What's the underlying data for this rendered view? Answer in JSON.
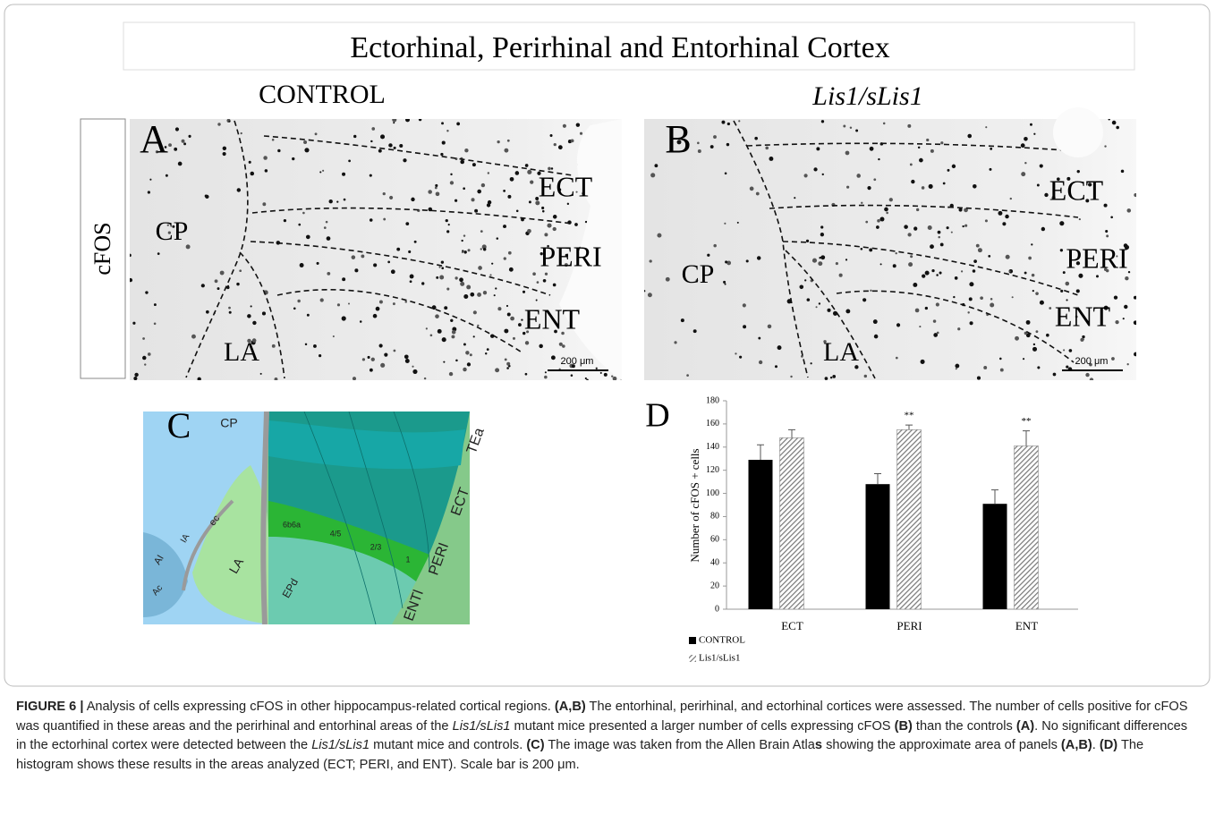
{
  "header": {
    "title": "Ectorhinal, Perirhinal and Entorhinal Cortex",
    "columns": [
      "CONTROL",
      "Lis1/sLis1"
    ],
    "row_label": "cFOS"
  },
  "panels": {
    "a": {
      "label": "A",
      "regions": [
        "ECT",
        "CP",
        "PERI",
        "ENT",
        "LA"
      ],
      "scale_bar": "200 μm"
    },
    "b": {
      "label": "B",
      "regions": [
        "ECT",
        "CP",
        "PERI",
        "ENT",
        "LA"
      ],
      "scale_bar": "200 μm"
    }
  },
  "panel_c": {
    "label": "C",
    "regions": [
      "CP",
      "TEa",
      "ECT",
      "PERI",
      "ENTl",
      "LA",
      "EPd",
      "6b6a",
      "4/5",
      "2/3",
      "1",
      "AI",
      "IA",
      "ec",
      "Ac"
    ]
  },
  "chart_data": {
    "type": "bar",
    "panel_label": "D",
    "y_label": "Number of cFOS + cells",
    "categories": [
      "ECT",
      "PERI",
      "ENT"
    ],
    "series": [
      {
        "name": "CONTROL",
        "color": "#000000",
        "values": [
          129,
          108,
          91
        ],
        "errors": [
          13,
          9,
          12
        ]
      },
      {
        "name": "Lis1/sLis1",
        "color": "#8a8a8a",
        "values": [
          148,
          155,
          141
        ],
        "errors": [
          7,
          4,
          13
        ],
        "annotations": [
          null,
          "**",
          "**"
        ]
      }
    ],
    "ylim": [
      0,
      180
    ],
    "yticks": [
      0,
      20,
      40,
      60,
      80,
      100,
      120,
      140,
      160,
      180
    ]
  },
  "caption": [
    "FIGURE 6 |",
    " Analysis of cells expressing cFOS in other hippocampus-related cortical regions. ",
    "(A,B)",
    " The entorhinal, perirhinal, and ectorhinal cortices were assessed. The number of cells positive for cFOS was quantified in these areas and the perirhinal and entorhinal areas of the ",
    "Lis1/sLis1",
    " mutant mice presented a larger number of cells expressing cFOS ",
    "(B)",
    " than the controls ",
    "(A)",
    ". No significant differences in the ectorhinal cortex were detected between the ",
    "Lis1/sLis1",
    " mutant mice and controls. ",
    "(C)",
    " The image was taken from the Allen Brain Atla",
    "s",
    " showing the approximate area of panels ",
    "(A,B)",
    ". ",
    "(D)",
    " The histogram shows these results in the areas analyzed (ECT; PERI, and ENT). Scale bar is 200 μm."
  ]
}
